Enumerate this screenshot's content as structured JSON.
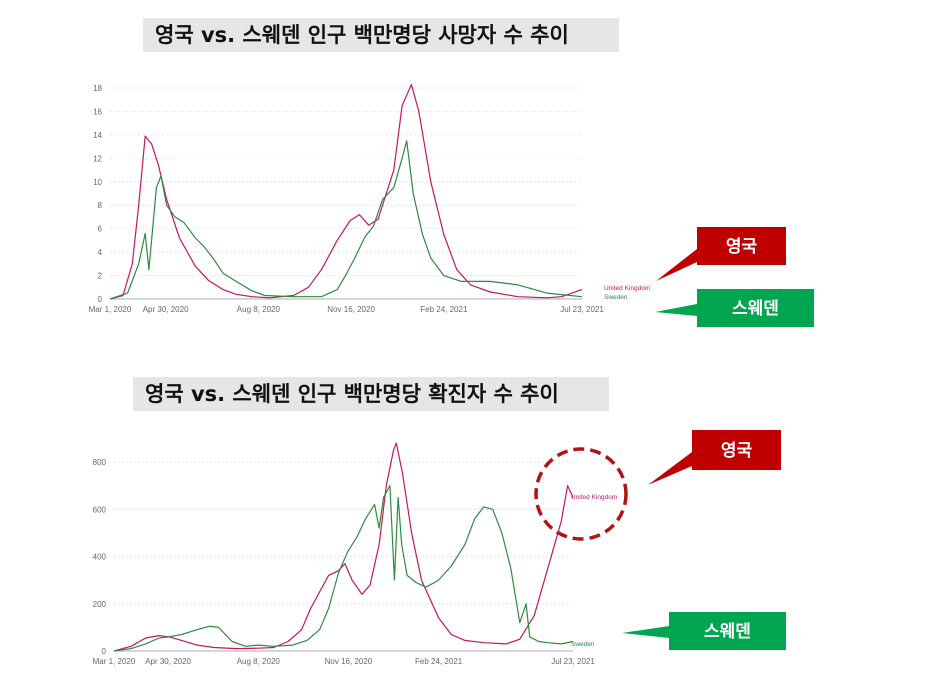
{
  "titles": {
    "deaths": "영국 vs. 스웨덴 인구 백만명당 사망자 수 추이",
    "cases": "영국 vs. 스웨덴 인구 백만명당 확진자 수 추이"
  },
  "badges": {
    "uk": "영국",
    "sweden": "스웨덴"
  },
  "colors": {
    "uk": "#c2185b",
    "sweden": "#2e8b3e",
    "badge_uk": "#c00000",
    "badge_sweden": "#00a550"
  },
  "chart_data": [
    {
      "type": "line",
      "title": "영국 vs. 스웨덴 인구 백만명당 사망자 수 추이",
      "x_ticks": [
        "Mar 1, 2020",
        "Apr 30, 2020",
        "Aug 8, 2020",
        "Nov 16, 2020",
        "Feb 24, 2021",
        "Jul 23, 2021"
      ],
      "y_ticks": [
        0,
        2,
        4,
        6,
        8,
        10,
        12,
        14,
        16,
        18
      ],
      "ylim": [
        0,
        19
      ],
      "xlim": [
        "2020-03-01",
        "2021-07-23"
      ],
      "grid": true,
      "series": [
        {
          "name": "United Kingdom",
          "points": [
            [
              "2020-03-01",
              0
            ],
            [
              "2020-03-15",
              0.3
            ],
            [
              "2020-03-25",
              3
            ],
            [
              "2020-04-01",
              8
            ],
            [
              "2020-04-08",
              13.9
            ],
            [
              "2020-04-15",
              13.2
            ],
            [
              "2020-04-22",
              11.5
            ],
            [
              "2020-05-01",
              8.5
            ],
            [
              "2020-05-15",
              5.2
            ],
            [
              "2020-06-01",
              2.8
            ],
            [
              "2020-06-15",
              1.6
            ],
            [
              "2020-07-01",
              0.8
            ],
            [
              "2020-07-15",
              0.4
            ],
            [
              "2020-08-01",
              0.2
            ],
            [
              "2020-08-20",
              0.1
            ],
            [
              "2020-09-15",
              0.3
            ],
            [
              "2020-10-01",
              1.0
            ],
            [
              "2020-10-15",
              2.5
            ],
            [
              "2020-11-01",
              5.0
            ],
            [
              "2020-11-15",
              6.7
            ],
            [
              "2020-11-25",
              7.2
            ],
            [
              "2020-12-05",
              6.3
            ],
            [
              "2020-12-15",
              6.8
            ],
            [
              "2021-01-01",
              11
            ],
            [
              "2021-01-10",
              16.5
            ],
            [
              "2021-01-20",
              18.3
            ],
            [
              "2021-01-28",
              16
            ],
            [
              "2021-02-10",
              10
            ],
            [
              "2021-02-24",
              5.5
            ],
            [
              "2021-03-10",
              2.5
            ],
            [
              "2021-03-25",
              1.2
            ],
            [
              "2021-04-15",
              0.6
            ],
            [
              "2021-05-15",
              0.2
            ],
            [
              "2021-06-15",
              0.1
            ],
            [
              "2021-07-01",
              0.2
            ],
            [
              "2021-07-23",
              0.8
            ]
          ]
        },
        {
          "name": "Sweden",
          "points": [
            [
              "2020-03-01",
              0
            ],
            [
              "2020-03-20",
              0.5
            ],
            [
              "2020-04-01",
              3
            ],
            [
              "2020-04-08",
              5.6
            ],
            [
              "2020-04-12",
              2.5
            ],
            [
              "2020-04-20",
              9.5
            ],
            [
              "2020-04-25",
              10.5
            ],
            [
              "2020-05-01",
              8
            ],
            [
              "2020-05-10",
              7
            ],
            [
              "2020-05-20",
              6.5
            ],
            [
              "2020-06-01",
              5.2
            ],
            [
              "2020-06-10",
              4.5
            ],
            [
              "2020-06-20",
              3.5
            ],
            [
              "2020-07-01",
              2.2
            ],
            [
              "2020-07-15",
              1.5
            ],
            [
              "2020-08-01",
              0.7
            ],
            [
              "2020-08-15",
              0.3
            ],
            [
              "2020-09-15",
              0.2
            ],
            [
              "2020-10-15",
              0.2
            ],
            [
              "2020-11-01",
              0.8
            ],
            [
              "2020-11-10",
              2
            ],
            [
              "2020-11-20",
              3.5
            ],
            [
              "2020-12-01",
              5.3
            ],
            [
              "2020-12-10",
              6.2
            ],
            [
              "2020-12-20",
              8.5
            ],
            [
              "2021-01-01",
              9.5
            ],
            [
              "2021-01-10",
              12
            ],
            [
              "2021-01-15",
              13.5
            ],
            [
              "2021-01-22",
              9
            ],
            [
              "2021-02-01",
              5.5
            ],
            [
              "2021-02-10",
              3.5
            ],
            [
              "2021-02-24",
              2
            ],
            [
              "2021-03-15",
              1.5
            ],
            [
              "2021-04-15",
              1.5
            ],
            [
              "2021-05-15",
              1.2
            ],
            [
              "2021-06-15",
              0.5
            ],
            [
              "2021-07-23",
              0.2
            ]
          ]
        }
      ]
    },
    {
      "type": "line",
      "title": "영국 vs. 스웨덴 인구 백만명당 확진자 수 추이",
      "x_ticks": [
        "Mar 1, 2020",
        "Apr 30, 2020",
        "Aug 8, 2020",
        "Nov 16, 2020",
        "Feb 24, 2021",
        "Jul 23, 2021"
      ],
      "y_ticks": [
        0,
        200,
        400,
        600,
        800
      ],
      "ylim": [
        0,
        840
      ],
      "xlim": [
        "2020-03-01",
        "2021-07-23"
      ],
      "grid": true,
      "series": [
        {
          "name": "United Kingdom",
          "points": [
            [
              "2020-03-01",
              0
            ],
            [
              "2020-03-20",
              20
            ],
            [
              "2020-04-05",
              55
            ],
            [
              "2020-04-20",
              65
            ],
            [
              "2020-05-01",
              60
            ],
            [
              "2020-05-15",
              45
            ],
            [
              "2020-06-01",
              25
            ],
            [
              "2020-06-20",
              15
            ],
            [
              "2020-07-15",
              10
            ],
            [
              "2020-08-08",
              12
            ],
            [
              "2020-08-25",
              15
            ],
            [
              "2020-09-10",
              40
            ],
            [
              "2020-09-25",
              90
            ],
            [
              "2020-10-05",
              180
            ],
            [
              "2020-10-15",
              250
            ],
            [
              "2020-10-25",
              320
            ],
            [
              "2020-11-05",
              340
            ],
            [
              "2020-11-12",
              370
            ],
            [
              "2020-11-20",
              300
            ],
            [
              "2020-12-01",
              240
            ],
            [
              "2020-12-10",
              280
            ],
            [
              "2020-12-20",
              450
            ],
            [
              "2020-12-28",
              700
            ],
            [
              "2021-01-05",
              850
            ],
            [
              "2021-01-08",
              880
            ],
            [
              "2021-01-15",
              750
            ],
            [
              "2021-01-25",
              500
            ],
            [
              "2021-02-05",
              300
            ],
            [
              "2021-02-24",
              140
            ],
            [
              "2021-03-10",
              70
            ],
            [
              "2021-03-25",
              45
            ],
            [
              "2021-04-15",
              35
            ],
            [
              "2021-05-10",
              30
            ],
            [
              "2021-05-25",
              50
            ],
            [
              "2021-06-10",
              150
            ],
            [
              "2021-06-25",
              350
            ],
            [
              "2021-07-10",
              550
            ],
            [
              "2021-07-17",
              700
            ],
            [
              "2021-07-23",
              650
            ]
          ]
        },
        {
          "name": "Sweden",
          "points": [
            [
              "2020-03-01",
              0
            ],
            [
              "2020-03-20",
              10
            ],
            [
              "2020-04-05",
              30
            ],
            [
              "2020-04-20",
              55
            ],
            [
              "2020-05-01",
              60
            ],
            [
              "2020-05-15",
              70
            ],
            [
              "2020-06-01",
              90
            ],
            [
              "2020-06-15",
              105
            ],
            [
              "2020-06-25",
              100
            ],
            [
              "2020-07-10",
              40
            ],
            [
              "2020-07-25",
              20
            ],
            [
              "2020-08-08",
              25
            ],
            [
              "2020-08-25",
              20
            ],
            [
              "2020-09-15",
              25
            ],
            [
              "2020-10-01",
              45
            ],
            [
              "2020-10-15",
              90
            ],
            [
              "2020-10-25",
              180
            ],
            [
              "2020-11-05",
              330
            ],
            [
              "2020-11-15",
              420
            ],
            [
              "2020-11-25",
              480
            ],
            [
              "2020-12-05",
              560
            ],
            [
              "2020-12-15",
              620
            ],
            [
              "2020-12-20",
              520
            ],
            [
              "2020-12-25",
              650
            ],
            [
              "2021-01-01",
              700
            ],
            [
              "2021-01-06",
              300
            ],
            [
              "2021-01-10",
              650
            ],
            [
              "2021-01-14",
              450
            ],
            [
              "2021-01-20",
              320
            ],
            [
              "2021-01-30",
              290
            ],
            [
              "2021-02-10",
              270
            ],
            [
              "2021-02-24",
              300
            ],
            [
              "2021-03-10",
              360
            ],
            [
              "2021-03-25",
              450
            ],
            [
              "2021-04-05",
              560
            ],
            [
              "2021-04-15",
              610
            ],
            [
              "2021-04-25",
              600
            ],
            [
              "2021-05-05",
              500
            ],
            [
              "2021-05-15",
              350
            ],
            [
              "2021-05-25",
              120
            ],
            [
              "2021-06-01",
              200
            ],
            [
              "2021-06-05",
              60
            ],
            [
              "2021-06-15",
              40
            ],
            [
              "2021-06-25",
              35
            ],
            [
              "2021-07-10",
              30
            ],
            [
              "2021-07-23",
              40
            ]
          ]
        }
      ],
      "annotation": "United Kingdom"
    }
  ]
}
